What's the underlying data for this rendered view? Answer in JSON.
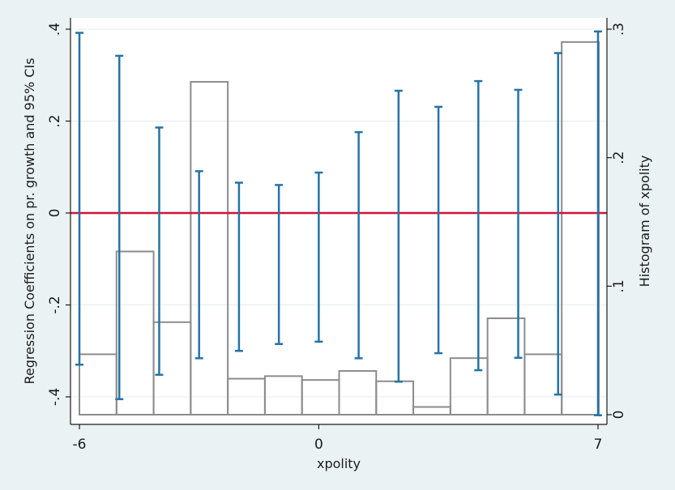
{
  "chart_data": {
    "type": "bar",
    "xlabel": "xpolity",
    "ylabel_left": "Regression Coefficients on pr. growth and 95% CIs",
    "ylabel_right": "Histogram of xpolity",
    "xlim": [
      -6,
      7
    ],
    "ylim_left": [
      -0.44,
      0.42
    ],
    "ylim_right": [
      0,
      0.3
    ],
    "x_ticks": [
      -6,
      0,
      7
    ],
    "y_ticks_left": [
      -0.4,
      -0.2,
      0,
      0.2,
      0.4
    ],
    "y_ticks_left_labels": [
      "-.4",
      "-.2",
      "0",
      ".2",
      ".4"
    ],
    "y_ticks_right": [
      0,
      0.1,
      0.2,
      0.3
    ],
    "y_ticks_right_labels": [
      "0",
      ".1",
      ".2",
      ".3"
    ],
    "reference_line_y": 0,
    "histogram": {
      "bin_width": 0.93,
      "bin_starts": [
        -6,
        -5.07,
        -4.14,
        -3.21,
        -2.28,
        -1.35,
        -0.42,
        0.51,
        1.44,
        2.37,
        3.3,
        4.23,
        5.16,
        6.09
      ],
      "values": [
        0.047,
        0.127,
        0.072,
        0.259,
        0.028,
        0.03,
        0.027,
        0.034,
        0.026,
        0.006,
        0.044,
        0.075,
        0.047,
        0.29
      ]
    },
    "error_bars": {
      "x": [
        -6,
        -5,
        -4,
        -3,
        -2,
        -1,
        0,
        1,
        2,
        3,
        4,
        5,
        6,
        7
      ],
      "lower": [
        -0.33,
        -0.405,
        -0.352,
        -0.316,
        -0.3,
        -0.285,
        -0.28,
        -0.316,
        -0.367,
        -0.305,
        -0.342,
        -0.315,
        -0.395,
        -0.44
      ],
      "upper": [
        0.392,
        0.342,
        0.186,
        0.091,
        0.066,
        0.061,
        0.088,
        0.176,
        0.266,
        0.231,
        0.287,
        0.268,
        0.348,
        0.395
      ]
    },
    "colors": {
      "background": "#eaf2f3",
      "plot_background": "#ffffff",
      "gridline": "#e3ecee",
      "reference_line": "#d4103d",
      "error_bar": "#2673a6",
      "histogram_edge": "#8c8c8c",
      "axis": "#1a1a1a"
    }
  }
}
